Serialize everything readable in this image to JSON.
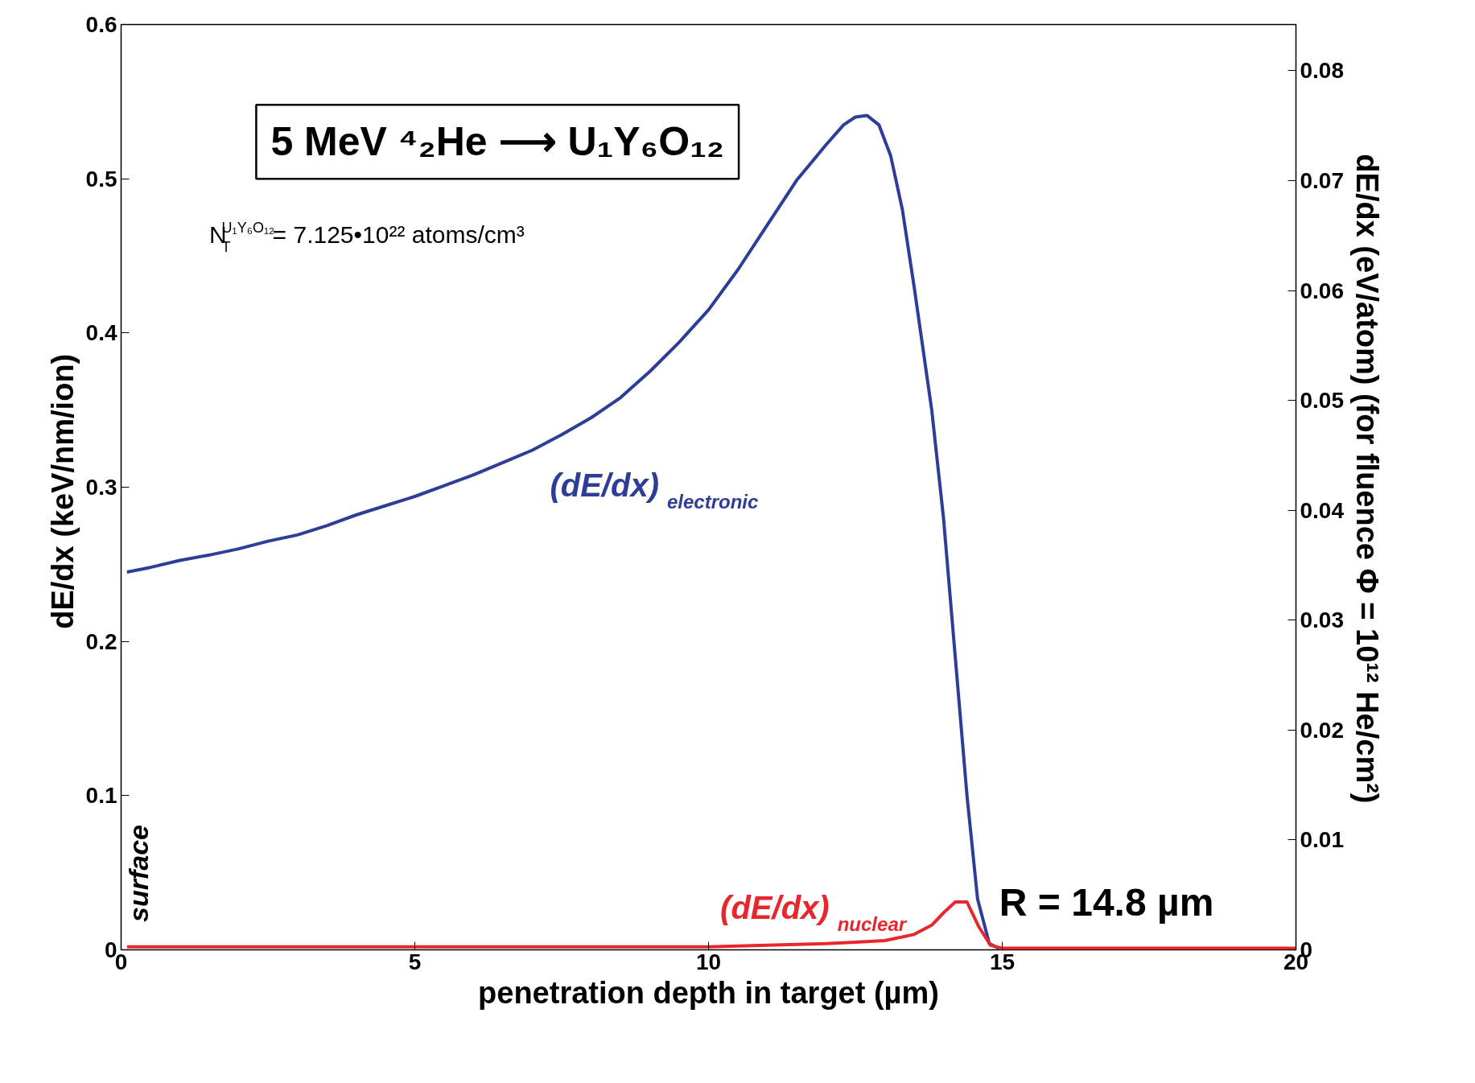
{
  "chart_data": {
    "type": "line",
    "xlabel": "penetration depth in target (µm)",
    "ylabel": "dE/dx  (keV/nm/ion)",
    "y2label": "dE/dx  (eV/atom)  (for fluence Φ = 10¹² He/cm²)",
    "xlim": [
      0,
      20
    ],
    "xticks": [
      0,
      5,
      10,
      15,
      20
    ],
    "ylim": [
      0,
      0.6
    ],
    "yticks": [
      0,
      0.1,
      0.2,
      0.3,
      0.4,
      0.5,
      0.6
    ],
    "y2lim": [
      0,
      0.0842
    ],
    "y2ticks": [
      0,
      0.01,
      0.02,
      0.03,
      0.04,
      0.05,
      0.06,
      0.07,
      0.08
    ],
    "grid": false,
    "line_style": "solid",
    "marker": "none",
    "annotations": [
      "5 MeV ⁴₂He ⟶ U₁Y₆O₁₂",
      "N$^{U₁Y₆O₁₂}$$_{T}$ = 7.125•10²² atoms/cm³",
      "surface",
      "R = 14.8 µm"
    ],
    "series": [
      {
        "name": "(dE/dx)$_{electronic}$",
        "color": "#2e3d98",
        "x": [
          0.1,
          0.5,
          1,
          1.5,
          2,
          2.5,
          3,
          3.5,
          4,
          4.5,
          5,
          5.5,
          6,
          6.5,
          7,
          7.5,
          8,
          8.5,
          9,
          9.5,
          10,
          10.5,
          11,
          11.5,
          12,
          12.3,
          12.5,
          12.7,
          12.9,
          13.1,
          13.3,
          13.5,
          13.8,
          14,
          14.2,
          14.4,
          14.58,
          14.78,
          15
        ],
        "values": [
          0.245,
          0.248,
          0.2525,
          0.256,
          0.26,
          0.265,
          0.269,
          0.275,
          0.282,
          0.288,
          0.294,
          0.301,
          0.308,
          0.316,
          0.324,
          0.334,
          0.345,
          0.358,
          0.375,
          0.394,
          0.415,
          0.441,
          0.47,
          0.499,
          0.522,
          0.535,
          0.54,
          0.541,
          0.535,
          0.515,
          0.48,
          0.43,
          0.35,
          0.28,
          0.19,
          0.1,
          0.033,
          0.004,
          0.0
        ]
      },
      {
        "name": "(dE/dx)$_{nuclear}$",
        "color": "#e8262b",
        "x": [
          0.1,
          2,
          4,
          6,
          8,
          10,
          11,
          12,
          12.5,
          13,
          13.5,
          13.8,
          14,
          14.2,
          14.4,
          14.6,
          14.8,
          15,
          17,
          20
        ],
        "values": [
          0.002,
          0.002,
          0.002,
          0.002,
          0.002,
          0.002,
          0.003,
          0.004,
          0.005,
          0.006,
          0.01,
          0.016,
          0.024,
          0.031,
          0.031,
          0.015,
          0.003,
          0.001,
          0.001,
          0.001
        ]
      }
    ]
  }
}
